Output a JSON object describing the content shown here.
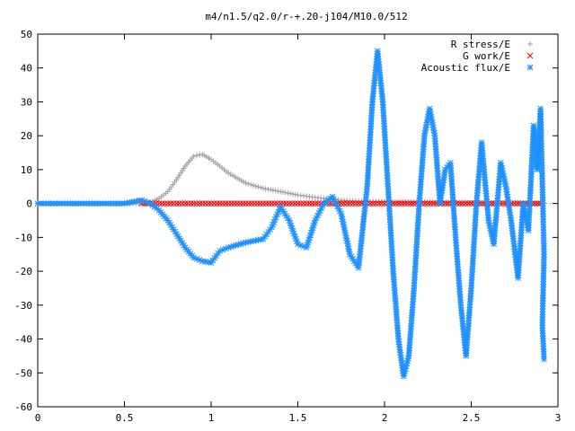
{
  "chart_data": {
    "type": "scatter",
    "title": "m4/n1.5/q2.0/r-+.20-j104/M10.0/512",
    "xlabel": "",
    "ylabel": "",
    "xlim": [
      0,
      3
    ],
    "ylim": [
      -60,
      50
    ],
    "x_ticks": [
      "0",
      "0.5",
      "1",
      "1.5",
      "2",
      "2.5",
      "3"
    ],
    "y_ticks": [
      "50",
      "40",
      "30",
      "20",
      "10",
      "0",
      "-10",
      "-20",
      "-30",
      "-40",
      "-50",
      "-60"
    ],
    "grid": false,
    "legend_position": "top-right",
    "series": [
      {
        "name": "R stress/E",
        "marker": "plus",
        "color": "#a0a0a0",
        "points": [
          [
            0,
            0
          ],
          [
            0.5,
            0
          ],
          [
            0.6,
            0
          ],
          [
            0.65,
            0.3
          ],
          [
            0.7,
            1.5
          ],
          [
            0.75,
            3.5
          ],
          [
            0.8,
            7
          ],
          [
            0.85,
            11
          ],
          [
            0.9,
            14
          ],
          [
            0.95,
            14.5
          ],
          [
            1.0,
            13
          ],
          [
            1.05,
            11
          ],
          [
            1.1,
            9
          ],
          [
            1.15,
            7.5
          ],
          [
            1.2,
            6
          ],
          [
            1.3,
            4.5
          ],
          [
            1.4,
            3.5
          ],
          [
            1.5,
            2.5
          ],
          [
            1.6,
            1.8
          ],
          [
            1.7,
            1.2
          ],
          [
            1.8,
            0.8
          ],
          [
            1.9,
            0.6
          ],
          [
            2.0,
            0.5
          ],
          [
            2.2,
            0.4
          ],
          [
            2.4,
            0.3
          ],
          [
            2.6,
            0.2
          ],
          [
            2.8,
            0.1
          ],
          [
            2.9,
            0
          ]
        ]
      },
      {
        "name": "G work/E",
        "marker": "cross",
        "color": "#ff0000",
        "points": [
          [
            0.6,
            0
          ],
          [
            0.7,
            0
          ],
          [
            0.8,
            0
          ],
          [
            0.9,
            0
          ],
          [
            1.0,
            0
          ],
          [
            1.1,
            0
          ],
          [
            1.2,
            0
          ],
          [
            1.3,
            0
          ],
          [
            1.4,
            0
          ],
          [
            1.5,
            0
          ],
          [
            1.6,
            0
          ],
          [
            1.7,
            0
          ],
          [
            1.8,
            0
          ],
          [
            1.9,
            0
          ],
          [
            2.0,
            0
          ],
          [
            2.1,
            0
          ],
          [
            2.2,
            0
          ],
          [
            2.3,
            0
          ],
          [
            2.4,
            0
          ],
          [
            2.5,
            0
          ],
          [
            2.6,
            0
          ],
          [
            2.7,
            0
          ],
          [
            2.8,
            0
          ],
          [
            2.9,
            0
          ]
        ]
      },
      {
        "name": "Acoustic flux/E",
        "marker": "star",
        "color": "#1e90ff",
        "points": [
          [
            0,
            0
          ],
          [
            0.5,
            0
          ],
          [
            0.6,
            1
          ],
          [
            0.65,
            0
          ],
          [
            0.7,
            -2
          ],
          [
            0.75,
            -5
          ],
          [
            0.8,
            -9
          ],
          [
            0.85,
            -13
          ],
          [
            0.9,
            -16
          ],
          [
            0.95,
            -17
          ],
          [
            1.0,
            -17.5
          ],
          [
            1.05,
            -14
          ],
          [
            1.1,
            -13
          ],
          [
            1.2,
            -11.5
          ],
          [
            1.3,
            -10.5
          ],
          [
            1.35,
            -7
          ],
          [
            1.4,
            -1
          ],
          [
            1.45,
            -5
          ],
          [
            1.5,
            -12
          ],
          [
            1.55,
            -13
          ],
          [
            1.6,
            -5
          ],
          [
            1.65,
            0
          ],
          [
            1.7,
            2
          ],
          [
            1.75,
            -3
          ],
          [
            1.8,
            -15
          ],
          [
            1.85,
            -19
          ],
          [
            1.9,
            5
          ],
          [
            1.93,
            30
          ],
          [
            1.96,
            45
          ],
          [
            1.99,
            30
          ],
          [
            2.02,
            5
          ],
          [
            2.05,
            -20
          ],
          [
            2.08,
            -40
          ],
          [
            2.11,
            -51
          ],
          [
            2.14,
            -45
          ],
          [
            2.17,
            -25
          ],
          [
            2.2,
            0
          ],
          [
            2.23,
            20
          ],
          [
            2.26,
            28
          ],
          [
            2.29,
            20
          ],
          [
            2.32,
            0
          ],
          [
            2.35,
            10
          ],
          [
            2.38,
            12
          ],
          [
            2.41,
            -10
          ],
          [
            2.44,
            -30
          ],
          [
            2.47,
            -45
          ],
          [
            2.5,
            -25
          ],
          [
            2.53,
            0
          ],
          [
            2.56,
            18
          ],
          [
            2.6,
            -5
          ],
          [
            2.63,
            -12
          ],
          [
            2.67,
            12
          ],
          [
            2.7,
            5
          ],
          [
            2.73,
            -5
          ],
          [
            2.77,
            -22
          ],
          [
            2.8,
            0
          ],
          [
            2.83,
            -8
          ],
          [
            2.86,
            23
          ],
          [
            2.88,
            10
          ],
          [
            2.9,
            28
          ],
          [
            2.92,
            -15
          ],
          [
            2.91,
            -36
          ],
          [
            2.92,
            -46
          ]
        ]
      }
    ]
  }
}
